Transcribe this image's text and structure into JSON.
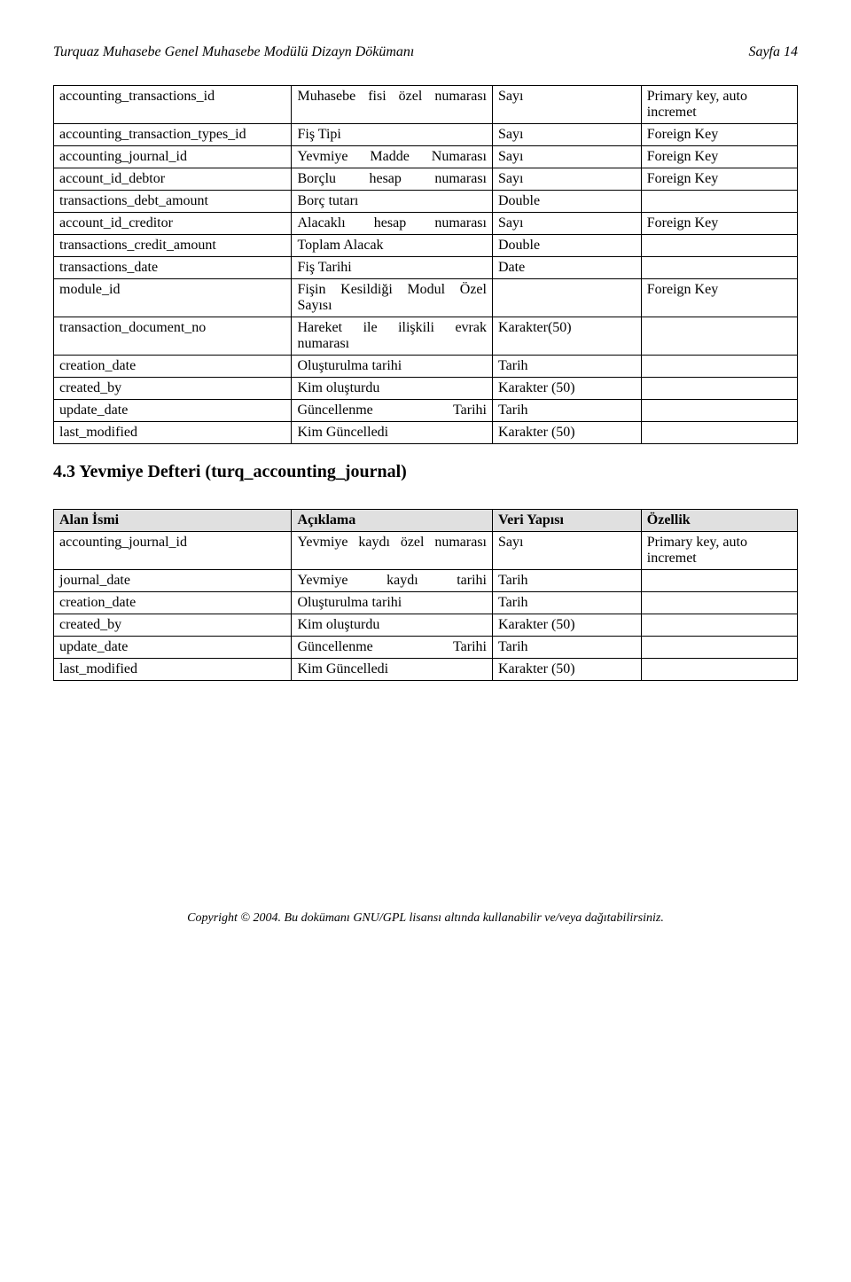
{
  "header": {
    "left": "Turquaz Muhasebe Genel Muhasebe Modülü  Dizayn Dökümanı",
    "right": "Sayfa 14"
  },
  "table1": {
    "rows": [
      [
        "accounting_transactions_id",
        "Muhasebe fisi özel numarası",
        "Sayı",
        "Primary key, auto incremet"
      ],
      [
        "accounting_transaction_types_id",
        "Fiş Tipi",
        "Sayı",
        "Foreign Key"
      ],
      [
        "accounting_journal_id",
        "Yevmiye Madde Numarası",
        "Sayı",
        "Foreign Key"
      ],
      [
        "account_id_debtor",
        "Borçlu hesap numarası",
        "Sayı",
        "Foreign Key"
      ],
      [
        "transactions_debt_amount",
        "Borç tutarı",
        "Double",
        ""
      ],
      [
        "account_id_creditor",
        "Alacaklı hesap numarası",
        "Sayı",
        "Foreign Key"
      ],
      [
        "transactions_credit_amount",
        "Toplam Alacak",
        "Double",
        ""
      ],
      [
        "transactions_date",
        "Fiş Tarihi",
        "Date",
        ""
      ],
      [
        "module_id",
        "Fişin Kesildiği Modul Özel Sayısı",
        "",
        "Foreign Key"
      ],
      [
        "transaction_document_no",
        "Hareket ile ilişkili evrak numarası",
        "Karakter(50)",
        ""
      ],
      [
        "creation_date",
        "Oluşturulma tarihi",
        "Tarih",
        ""
      ],
      [
        "created_by",
        "Kim oluşturdu",
        "Karakter (50)",
        ""
      ],
      [
        "update_date",
        "Güncellenme Tarihi",
        "Tarih",
        ""
      ],
      [
        "last_modified",
        "Kim Güncelledi",
        "Karakter (50)",
        ""
      ]
    ],
    "justifyRows": [
      0,
      2,
      3,
      5,
      8,
      9,
      12
    ]
  },
  "sectionHeading": "4.3  Yevmiye Defteri (turq_accounting_journal)",
  "table2": {
    "headers": [
      "Alan İsmi",
      "Açıklama",
      "Veri Yapısı",
      "Özellik"
    ],
    "rows": [
      [
        "accounting_journal_id",
        "Yevmiye kaydı özel numarası",
        "Sayı",
        "Primary key, auto incremet"
      ],
      [
        "journal_date",
        "Yevmiye kaydı tarihi",
        "Tarih",
        ""
      ],
      [
        "creation_date",
        "Oluşturulma tarihi",
        "Tarih",
        ""
      ],
      [
        "created_by",
        "Kim oluşturdu",
        "Karakter (50)",
        ""
      ],
      [
        "update_date",
        "Güncellenme Tarihi",
        "Tarih",
        ""
      ],
      [
        "last_modified",
        "Kim Güncelledi",
        "Karakter (50)",
        ""
      ]
    ],
    "justifyRows": [
      0,
      1,
      4
    ]
  },
  "footer": "Copyright © 2004. Bu dokümanı GNU/GPL lisansı altında kullanabilir ve/veya dağıtabilirsiniz."
}
